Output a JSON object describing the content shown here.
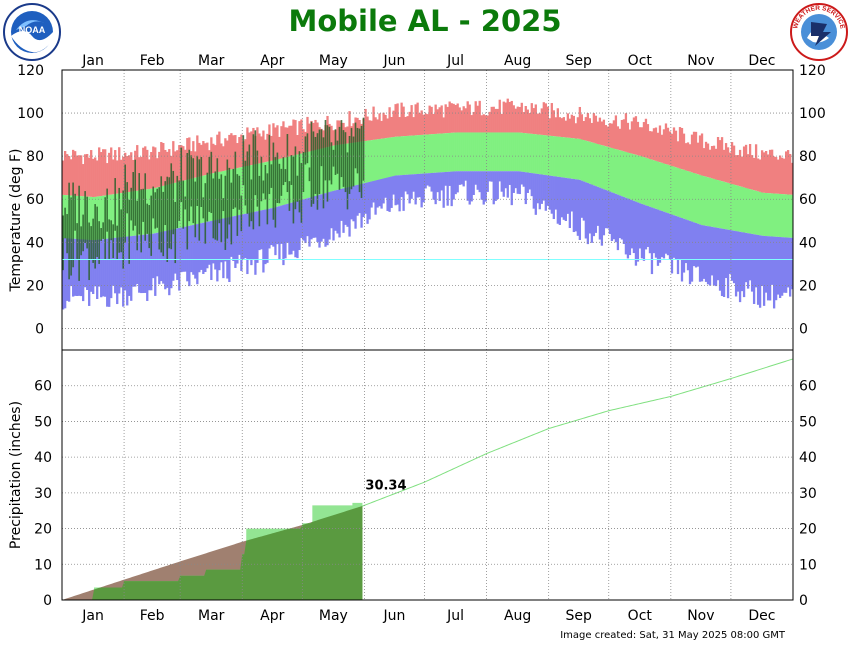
{
  "page": {
    "title": "Mobile AL - 2025",
    "image_created": "Image created: Sat, 31 May 2025 08:00 GMT"
  },
  "logos": {
    "left": {
      "name": "noaa-logo",
      "text": "NOAA"
    },
    "right": {
      "name": "nws-logo",
      "text": "NATIONAL WEATHER SERVICE"
    }
  },
  "colors": {
    "record_high_band": "#f08080",
    "normal_band": "#80f080",
    "record_low_band": "#8080f0",
    "observed_bar": "#2a5f2a",
    "precip_normal_fill": "#a08070",
    "precip_observed_fill": "#5a9a40",
    "precip_observed_line": "#80e080",
    "freezing_line": "#80ffff"
  },
  "chart_data": [
    {
      "type": "bar",
      "name": "temperature",
      "months": [
        "Jan",
        "Feb",
        "Mar",
        "Apr",
        "May",
        "Jun",
        "Jul",
        "Aug",
        "Sep",
        "Oct",
        "Nov",
        "Dec"
      ],
      "ylabel": "Temperature (deg F)",
      "yticks": [
        0,
        20,
        40,
        60,
        80,
        100,
        120
      ],
      "ylim": [
        -10,
        120
      ],
      "freezing_line": 32,
      "monthly": {
        "record_high": [
          80,
          82,
          87,
          92,
          96,
          101,
          102,
          103,
          99,
          95,
          87,
          81
        ],
        "normal_high": [
          61,
          65,
          72,
          78,
          85,
          89,
          91,
          91,
          88,
          80,
          71,
          63
        ],
        "normal_low": [
          41,
          44,
          50,
          56,
          64,
          71,
          73,
          73,
          69,
          58,
          48,
          43
        ],
        "record_low": [
          14,
          18,
          25,
          33,
          45,
          58,
          63,
          62,
          47,
          33,
          23,
          15
        ],
        "observed_high": [
          58,
          68,
          72,
          80,
          86
        ],
        "observed_low": [
          34,
          42,
          48,
          57,
          66
        ]
      },
      "observed_through": "May 31",
      "grid": true
    },
    {
      "type": "area",
      "name": "precipitation",
      "months": [
        "Jan",
        "Feb",
        "Mar",
        "Apr",
        "May",
        "Jun",
        "Jul",
        "Aug",
        "Sep",
        "Oct",
        "Nov",
        "Dec"
      ],
      "ylabel": "Precipitation (inches)",
      "yticks": [
        0,
        10,
        20,
        30,
        40,
        50,
        60
      ],
      "ylim": [
        0,
        70
      ],
      "normal_cumulative_end_of_month": [
        5.7,
        10.8,
        16.3,
        21.0,
        26.5,
        33.0,
        41.0,
        48.0,
        53.0,
        57.0,
        62.0,
        67.5
      ],
      "observed_cumulative_points": [
        {
          "day": 0,
          "value": 0
        },
        {
          "day": 16,
          "value": 3.5
        },
        {
          "day": 31,
          "value": 5.3
        },
        {
          "day": 59,
          "value": 6.8
        },
        {
          "day": 72,
          "value": 8.5
        },
        {
          "day": 90,
          "value": 12.8
        },
        {
          "day": 92,
          "value": 20.0
        },
        {
          "day": 120,
          "value": 21.5
        },
        {
          "day": 125,
          "value": 26.5
        },
        {
          "day": 145,
          "value": 27.2
        },
        {
          "day": 150,
          "value": 30.34
        }
      ],
      "observed_total_label": "30.34",
      "grid": true
    }
  ]
}
